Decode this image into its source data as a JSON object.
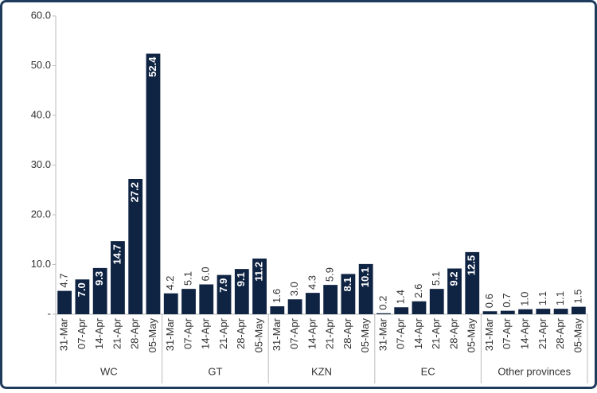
{
  "chart_data": {
    "type": "bar",
    "color": "#0f2343",
    "ylim": [
      0,
      60
    ],
    "yticks": [
      {
        "value": 0,
        "label": "-"
      },
      {
        "value": 10,
        "label": "10.0"
      },
      {
        "value": 20,
        "label": "20.0"
      },
      {
        "value": 30,
        "label": "30.0"
      },
      {
        "value": 40,
        "label": "40.0"
      },
      {
        "value": 50,
        "label": "50.0"
      },
      {
        "value": 60,
        "label": "60.0"
      }
    ],
    "groups": [
      {
        "name": "WC",
        "categories": [
          "31-Mar",
          "07-Apr",
          "14-Apr",
          "21-Apr",
          "28-Apr",
          "05-May"
        ],
        "values": [
          4.7,
          7,
          9.3,
          14.7,
          27.2,
          52.4
        ],
        "value_labels": [
          "4.7",
          "7.0",
          "9.3",
          "14.7",
          "27.2",
          "52.4"
        ]
      },
      {
        "name": "GT",
        "categories": [
          "31-Mar",
          "07-Apr",
          "14-Apr",
          "21-Apr",
          "28-Apr",
          "05-May"
        ],
        "values": [
          4.2,
          5.1,
          6,
          7.9,
          9.1,
          11.2
        ],
        "value_labels": [
          "4.2",
          "5.1",
          "6.0",
          "7.9",
          "9.1",
          "11.2"
        ]
      },
      {
        "name": "KZN",
        "categories": [
          "31-Mar",
          "07-Apr",
          "14-Apr",
          "21-Apr",
          "28-Apr",
          "05-May"
        ],
        "values": [
          1.6,
          3,
          4.3,
          5.9,
          8.1,
          10.1
        ],
        "value_labels": [
          "1.6",
          "3.0",
          "4.3",
          "5.9",
          "8.1",
          "10.1"
        ]
      },
      {
        "name": "EC",
        "categories": [
          "31-Mar",
          "07-Apr",
          "14-Apr",
          "21-Apr",
          "28-Apr",
          "05-May"
        ],
        "values": [
          0.2,
          1.4,
          2.6,
          5.1,
          9.2,
          12.5
        ],
        "value_labels": [
          "0.2",
          "1.4",
          "2.6",
          "5.1",
          "9.2",
          "12.5"
        ]
      },
      {
        "name": "Other provinces",
        "categories": [
          "31-Mar",
          "07-Apr",
          "14-Apr",
          "21-Apr",
          "28-Apr",
          "05-May"
        ],
        "values": [
          0.6,
          0.7,
          1,
          1.1,
          1.1,
          1.5
        ],
        "value_labels": [
          "0.6",
          "0.7",
          "1.0",
          "1.1",
          "1.1",
          "1.5"
        ]
      }
    ]
  }
}
